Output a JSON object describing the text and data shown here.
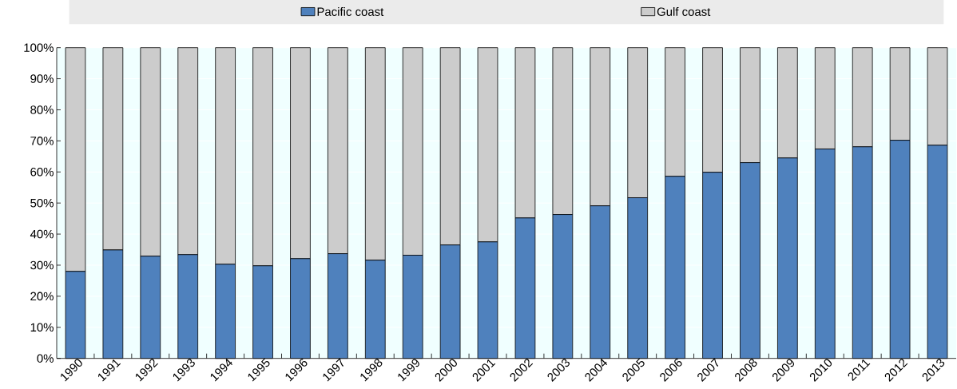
{
  "chart_data": {
    "type": "bar",
    "stacked": true,
    "categories": [
      "1990",
      "1991",
      "1992",
      "1993",
      "1994",
      "1995",
      "1996",
      "1997",
      "1998",
      "1999",
      "2000",
      "2001",
      "2002",
      "2003",
      "2004",
      "2005",
      "2006",
      "2007",
      "2008",
      "2009",
      "2010",
      "2011",
      "2012",
      "2013"
    ],
    "series": [
      {
        "name": "Pacific coast",
        "color": "#4f81bd",
        "values": [
          28.0,
          34.9,
          32.9,
          33.4,
          30.3,
          29.8,
          32.1,
          33.7,
          31.6,
          33.2,
          36.5,
          37.5,
          45.2,
          46.3,
          49.1,
          51.7,
          58.6,
          59.9,
          63.0,
          64.5,
          67.4,
          68.1,
          70.2,
          68.6
        ]
      },
      {
        "name": "Gulf coast",
        "color": "#cccccc",
        "values": [
          72.0,
          65.1,
          67.1,
          66.6,
          69.7,
          70.2,
          67.9,
          66.3,
          68.4,
          66.8,
          63.5,
          62.5,
          54.8,
          53.7,
          50.9,
          48.3,
          41.4,
          40.1,
          37.0,
          35.5,
          32.6,
          31.9,
          29.8,
          31.4
        ]
      }
    ],
    "ylim": [
      0,
      100
    ],
    "yticks": [
      {
        "value": 0,
        "label": "0%"
      },
      {
        "value": 10,
        "label": "10%"
      },
      {
        "value": 20,
        "label": "20%"
      },
      {
        "value": 30,
        "label": "30%"
      },
      {
        "value": 40,
        "label": "40%"
      },
      {
        "value": 50,
        "label": "50%"
      },
      {
        "value": 60,
        "label": "60%"
      },
      {
        "value": 70,
        "label": "70%"
      },
      {
        "value": 80,
        "label": "80%"
      },
      {
        "value": 90,
        "label": "90%"
      },
      {
        "value": 100,
        "label": "100%"
      }
    ],
    "grid": "y",
    "legend": "top"
  }
}
